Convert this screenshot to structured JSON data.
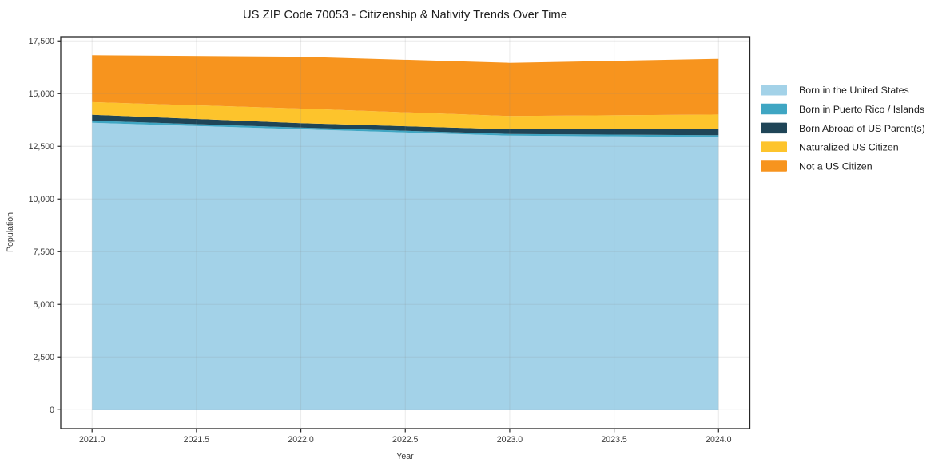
{
  "title": "US ZIP Code 70053 - Citizenship & Nativity Trends Over Time",
  "axes": {
    "xlabel": "Year",
    "ylabel": "Population"
  },
  "chart_data": {
    "type": "area",
    "stacked": true,
    "title": "US ZIP Code 70053 - Citizenship & Nativity Trends Over Time",
    "xlabel": "Year",
    "ylabel": "Population",
    "x": [
      2021,
      2022,
      2023,
      2024
    ],
    "series": [
      {
        "name": "Born in the United States",
        "color": "#a3d2e8",
        "values": [
          13620,
          13310,
          13010,
          12940
        ]
      },
      {
        "name": "Born in Puerto Rico / Islands",
        "color": "#3fa6c3",
        "values": [
          100,
          80,
          80,
          90
        ]
      },
      {
        "name": "Born Abroad of US Parent(s)",
        "color": "#1f4557",
        "values": [
          280,
          210,
          220,
          300
        ]
      },
      {
        "name": "Naturalized US Citizen",
        "color": "#fdc42c",
        "values": [
          600,
          690,
          630,
          680
        ]
      },
      {
        "name": "Not a US Citizen",
        "color": "#f7941e",
        "values": [
          2220,
          2460,
          2520,
          2640
        ]
      }
    ],
    "totals": [
      16820,
      16750,
      16460,
      16650
    ],
    "xlim": [
      2020.85,
      2024.15
    ],
    "ylim": [
      -900,
      17700
    ],
    "x_ticks": [
      2021.0,
      2021.5,
      2022.0,
      2022.5,
      2023.0,
      2023.5,
      2024.0
    ],
    "x_tick_labels": [
      "2021.0",
      "2021.5",
      "2022.0",
      "2022.5",
      "2023.0",
      "2023.5",
      "2024.0"
    ],
    "y_ticks": [
      0,
      2500,
      5000,
      7500,
      10000,
      12500,
      15000,
      17500
    ],
    "y_tick_labels": [
      "0",
      "2,500",
      "5,000",
      "7,500",
      "10,000",
      "12,500",
      "15,000",
      "17,500"
    ],
    "grid": true,
    "legend_position": "right-outside"
  },
  "style_colors": {
    "plot_background": "#ffffff",
    "figure_background": "#ffffff",
    "gridline": "#888888",
    "spine": "#262626",
    "tick_label": "#3a3a3a",
    "title_text": "#1f1f1f",
    "legend_text": "#1f1f1f"
  }
}
